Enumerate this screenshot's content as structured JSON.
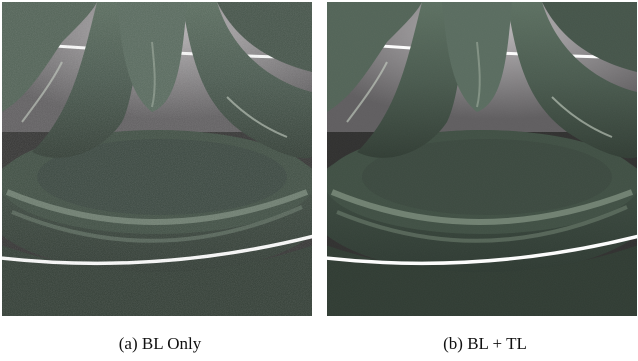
{
  "figure": {
    "panels": [
      {
        "caption": "(a) BL Only",
        "noise": "high"
      },
      {
        "caption": "(b) BL + TL",
        "noise": "low"
      }
    ]
  },
  "colors": {
    "background_dark": "#3c3c3a",
    "surface_green": "#4a5b4e",
    "surface_dark": "#273229",
    "highlight": "#c9d4c6",
    "floor": "#8c8a8c",
    "white_line": "#ffffff"
  }
}
